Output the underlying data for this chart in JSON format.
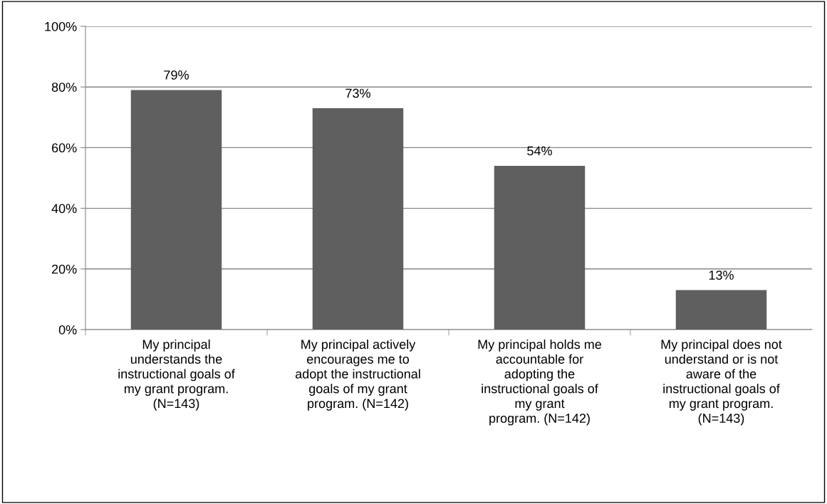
{
  "chart_data": {
    "type": "bar",
    "categories": [
      "My principal\nunderstands the\ninstructional goals of\nmy grant program.\n(N=143)",
      "My principal actively\nencourages me to\nadopt the instructional\ngoals of my grant\nprogram. (N=142)",
      "My principal holds me\naccountable for\nadopting the\ninstructional goals of\nmy grant\nprogram. (N=142)",
      "My principal does not\nunderstand or is not\naware of the\ninstructional goals of\nmy grant program.\n(N=143)"
    ],
    "values": [
      79,
      73,
      54,
      13
    ],
    "value_labels": [
      "79%",
      "73%",
      "54%",
      "13%"
    ],
    "color": "#5f5f5f",
    "ylim": [
      0,
      100
    ],
    "yticks": [
      {
        "value": 0,
        "label": "0%"
      },
      {
        "value": 20,
        "label": "20%"
      },
      {
        "value": 40,
        "label": "40%"
      },
      {
        "value": 60,
        "label": "60%"
      },
      {
        "value": 80,
        "label": "80%"
      },
      {
        "value": 100,
        "label": "100%"
      }
    ],
    "grid": "y"
  }
}
